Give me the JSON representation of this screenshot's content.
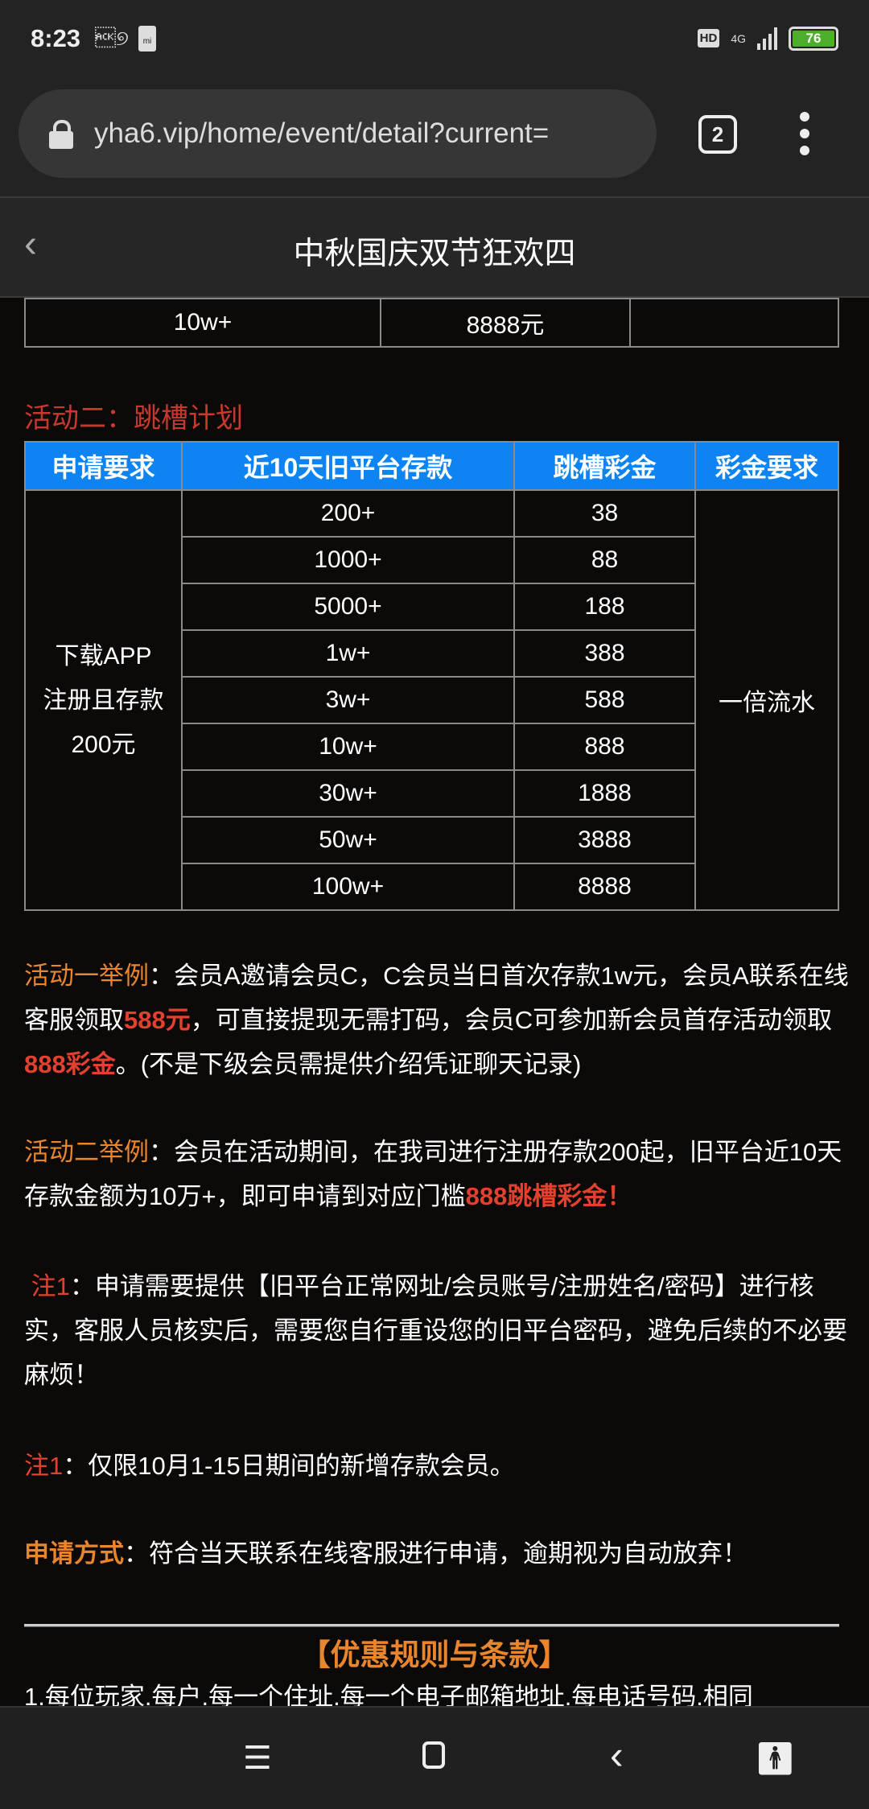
{
  "status_bar": {
    "time": "8:23",
    "hd": "HD",
    "network": "4G",
    "battery": "76"
  },
  "browser": {
    "url": "yha6.vip/home/event/detail?current=",
    "tab_count": "2"
  },
  "header": {
    "title": "中秋国庆双节狂欢四"
  },
  "table1": {
    "row": [
      "10w+",
      "8888元",
      ""
    ]
  },
  "activity2": {
    "title": "活动二：跳槽计划",
    "headers": [
      "申请要求",
      "近10天旧平台存款",
      "跳槽彩金",
      "彩金要求"
    ],
    "requirement": "下载APP注册且存款200元",
    "bonus_requirement": "一倍流水",
    "rows": [
      [
        "200+",
        "38"
      ],
      [
        "1000+",
        "88"
      ],
      [
        "5000+",
        "188"
      ],
      [
        "1w+",
        "388"
      ],
      [
        "3w+",
        "588"
      ],
      [
        "10w+",
        "888"
      ],
      [
        "30w+",
        "1888"
      ],
      [
        "50w+",
        "3888"
      ],
      [
        "100w+",
        "8888"
      ]
    ]
  },
  "example1": {
    "label": "活动一举例",
    "text1": "：会员A邀请会员C，C会员当日首次存款1w元，会员A联系在线客服领取",
    "hl1": "588元",
    "text2": "，可直接提现无需打码，会员C可参加新会员首存活动领取",
    "hl2": "888彩金",
    "text3": "。(不是下级会员需提供介绍凭证聊天记录)"
  },
  "example2": {
    "label": "活动二举例",
    "text1": "：会员在活动期间，在我司进行注册存款200起，旧平台近10天存款金额为10万+，即可申请到对应门槛",
    "hl1": "888跳槽彩金！"
  },
  "note1": {
    "label": "注1",
    "text": "：申请需要提供【旧平台正常网址/会员账号/注册姓名/密码】进行核实，客服人员核实后，需要您自行重设您的旧平台密码，避免后续的不必要麻烦！"
  },
  "note2": {
    "label": "注1",
    "text": "：仅限10月1-15日期间的新增存款会员。"
  },
  "apply": {
    "label": "申请方式",
    "text": "：符合当天联系在线客服进行申请，逾期视为自动放弃！"
  },
  "rules": {
    "title": "【优惠规则与条款】",
    "line1": "1.每位玩家.每户.每一个住址.每一个电子邮箱地址.每电话号码.相同"
  },
  "colors": {
    "accent_orange": "#e8852d",
    "highlight_red": "#e2412f",
    "table_header_blue": "#0d84f2"
  },
  "nav_icons": [
    "menu-icon",
    "home-icon",
    "back-icon",
    "accessibility-icon"
  ]
}
